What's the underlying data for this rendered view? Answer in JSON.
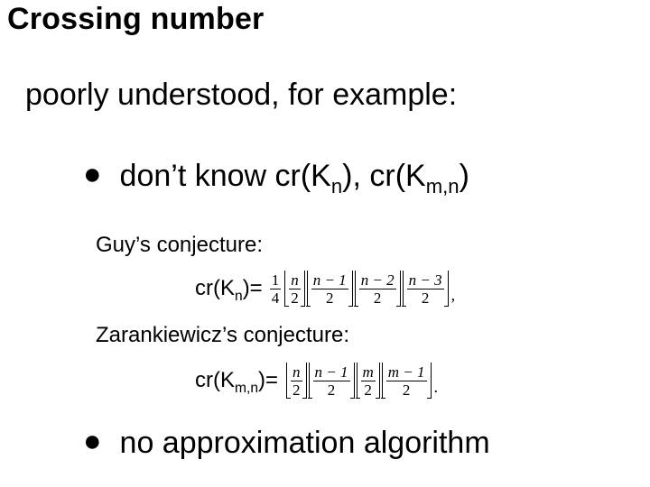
{
  "title": "Crossing number",
  "subtitle": "poorly understood, for example:",
  "bullets": {
    "b1_pre": "don’t know cr(K",
    "b1_sub1": "n",
    "b1_mid": "), cr(K",
    "b1_sub2": "m,n",
    "b1_post": ")",
    "b2": "no approximation algorithm"
  },
  "conjectures": {
    "guy": "Guy’s conjecture:",
    "zar": "Zarankiewicz’s conjecture:"
  },
  "formula": {
    "guy_lhs_pre": "cr(K",
    "guy_lhs_sub": "n",
    "guy_lhs_post": ")=",
    "zar_lhs_pre": "cr(K",
    "zar_lhs_sub": "m,n",
    "zar_lhs_post": ")=",
    "quarter_num": "1",
    "quarter_den": "4",
    "den": "2",
    "guy_terms": [
      "n",
      "n − 1",
      "n − 2",
      "n − 3"
    ],
    "zar_terms": [
      "n",
      "n − 1",
      "m",
      "m − 1"
    ],
    "guy_tail": ",",
    "zar_tail": "."
  },
  "style": {
    "bg": "#ffffff",
    "fg": "#000000",
    "title_fontsize": 34,
    "body_fontsize": 34,
    "conj_fontsize": 24,
    "lhs_fontsize": 24,
    "frac_fontsize": 17,
    "title_weight": "bold",
    "font_family": "Verdana"
  }
}
